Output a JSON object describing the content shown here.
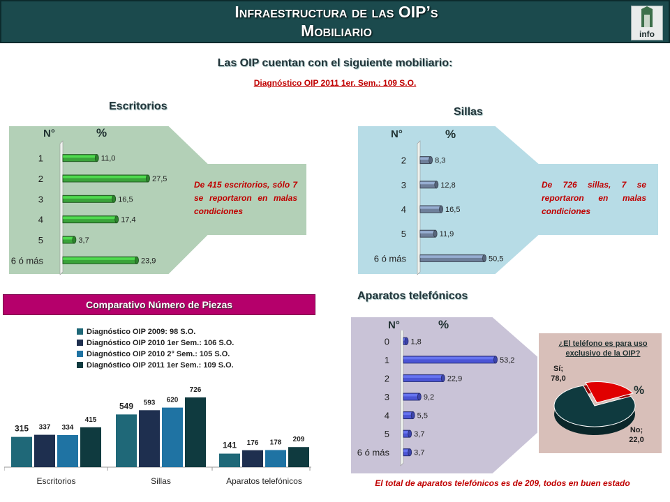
{
  "header": {
    "title_line1": "Infraestructura de las OIP’s",
    "title_line2": "Mobiliario",
    "logo_text": "info"
  },
  "main": {
    "title": "Las OIP cuentan con el siguiente mobiliario:",
    "subtitle": "Diagnóstico OIP 2011 1er. Sem.: 109 S.O."
  },
  "colors": {
    "header": "#1b4a4d",
    "green_panel": "#b3d0b7",
    "blue_panel": "#b7dce6",
    "purple_panel": "#c9c3d7",
    "accent_red": "#c00000",
    "comp_title_bg": "#b5006b"
  },
  "desks": {
    "title": "Escritorios",
    "col_no": "N°",
    "col_pct": "%",
    "note": "De 415 escritorios, sólo 7 se reportaron en malas condiciones"
  },
  "chairs": {
    "title": "Sillas",
    "col_no": "N°",
    "col_pct": "%",
    "note": "De 726 sillas, 7 se reportaron en malas condiciones"
  },
  "phones": {
    "title": "Aparatos telefónicos",
    "col_no": "N°",
    "col_pct": "%",
    "question": "¿El teléfono es para uso exclusivo de la OIP?",
    "pie_pct_label": "%",
    "footer": "El total de aparatos telefónicos es de 209, todos en buen estado"
  },
  "comparison": {
    "title": "Comparativo Número de Piezas"
  },
  "chart_data": [
    {
      "type": "bar",
      "orientation": "horizontal",
      "categories": [
        "1",
        "2",
        "3",
        "4",
        "5",
        "6 ó más"
      ],
      "values": [
        11.0,
        27.5,
        16.5,
        17.4,
        3.7,
        23.9
      ],
      "value_labels": [
        "11,0",
        "27,5",
        "16,5",
        "17,4",
        "3,7",
        "23,9"
      ],
      "color": "#3aa33a"
    },
    {
      "type": "bar",
      "orientation": "horizontal",
      "categories": [
        "2",
        "3",
        "4",
        "5",
        "6 ó más"
      ],
      "values": [
        8.3,
        12.8,
        16.5,
        11.9,
        50.5
      ],
      "value_labels": [
        "8,3",
        "12,8",
        "16,5",
        "11,9",
        "50,5"
      ],
      "color": "#6e7f9a"
    },
    {
      "type": "bar",
      "orientation": "horizontal",
      "categories": [
        "0",
        "1",
        "2",
        "3",
        "4",
        "5",
        "6 ó más"
      ],
      "values": [
        1.8,
        53.2,
        22.9,
        9.2,
        5.5,
        3.7,
        3.7
      ],
      "value_labels": [
        "1,8",
        "53,2",
        "22,9",
        "9,2",
        "5,5",
        "3,7",
        "3,7"
      ],
      "color": "#4b55d6"
    },
    {
      "type": "bar",
      "categories": [
        "Escritorios",
        "Sillas",
        "Aparatos telefónicos"
      ],
      "series": [
        {
          "name": "Diagnóstico OIP 2009: 98 S.O.",
          "values": [
            315,
            549,
            141
          ],
          "color": "#1f6878"
        },
        {
          "name": "Diagnóstico OIP 2010 1er Sem.: 106 S.O.",
          "values": [
            337,
            593,
            176
          ],
          "color": "#1e2f4f"
        },
        {
          "name": "Diagnóstico OIP 2010 2° Sem.: 105 S.O.",
          "values": [
            334,
            620,
            178
          ],
          "color": "#1f73a3"
        },
        {
          "name": "Diagnóstico OIP 2011 1er Sem.: 109 S.O.",
          "values": [
            415,
            726,
            209
          ],
          "color": "#0f3a3f"
        }
      ]
    },
    {
      "type": "pie",
      "slices": [
        {
          "label": "Sí;",
          "value": 78.0,
          "value_label": "78,0",
          "color": "#0f3a3f"
        },
        {
          "label": "No;",
          "value": 22.0,
          "value_label": "22,0",
          "color": "#e00000"
        }
      ]
    }
  ]
}
